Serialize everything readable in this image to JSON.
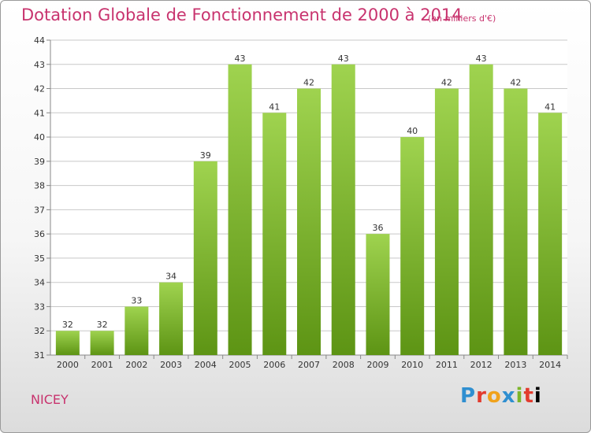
{
  "header": {
    "title": "Dotation Globale de Fonctionnement de 2000 à 2014",
    "unit_note": "(en milliers d'€)"
  },
  "footer": {
    "commune": "NICEY",
    "brand_letters": [
      "P",
      "r",
      "o",
      "x",
      "i",
      "t",
      "i"
    ]
  },
  "colors": {
    "title": "#c8336e",
    "bar_top": "#9fd34f",
    "bar_bottom": "#5d9414",
    "grid": "#c8c8c8",
    "axis_text": "#333333"
  },
  "chart_data": {
    "type": "bar",
    "categories": [
      "2000",
      "2001",
      "2002",
      "2003",
      "2004",
      "2005",
      "2006",
      "2007",
      "2008",
      "2009",
      "2010",
      "2011",
      "2012",
      "2013",
      "2014"
    ],
    "values": [
      32,
      32,
      33,
      34,
      39,
      43,
      41,
      42,
      43,
      36,
      40,
      42,
      43,
      42,
      41
    ],
    "title": "Dotation Globale de Fonctionnement de 2000 à 2014",
    "subtitle": "(en milliers d'€)",
    "xlabel": "",
    "ylabel": "",
    "ylim": [
      31,
      44
    ],
    "yticks": [
      31,
      32,
      33,
      34,
      35,
      36,
      37,
      38,
      39,
      40,
      41,
      42,
      43,
      44
    ],
    "grid": true,
    "data_labels": true
  }
}
